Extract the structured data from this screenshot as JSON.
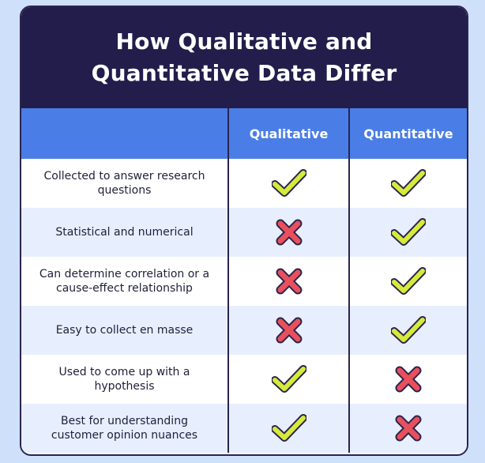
{
  "title": "How Qualitative and Quantitative Data Differ",
  "headers": [
    "",
    "Qualitative",
    "Quantitative"
  ],
  "rows": [
    {
      "label": "Collected to answer research questions",
      "qualitative": "check-icon",
      "quantitative": "check-icon"
    },
    {
      "label": "Statistical and numerical",
      "qualitative": "cross-icon",
      "quantitative": "check-icon"
    },
    {
      "label": "Can determine correlation or a cause-effect relationship",
      "qualitative": "cross-icon",
      "quantitative": "check-icon"
    },
    {
      "label": "Easy to collect en masse",
      "qualitative": "cross-icon",
      "quantitative": "check-icon"
    },
    {
      "label": "Used to come up with a hypothesis",
      "qualitative": "check-icon",
      "quantitative": "cross-icon"
    },
    {
      "label": "Best for understanding customer opinion nuances",
      "qualitative": "check-icon",
      "quantitative": "cross-icon"
    }
  ],
  "colors": {
    "background": "#cfe0fb",
    "title_bg": "#221d4b",
    "header_bg": "#4a7ee6",
    "row_alt": "#e7efff",
    "check": "#d6ea3a",
    "cross": "#e8505b",
    "outline": "#2a2450"
  }
}
